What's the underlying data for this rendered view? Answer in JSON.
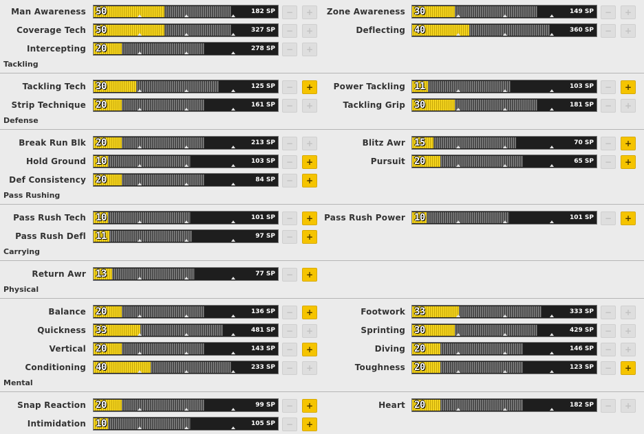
{
  "sections": [
    {
      "title": "",
      "rows": [
        [
          {
            "label": "Man Awareness",
            "value": "50",
            "level": 50,
            "sp": "182 SP",
            "plus_enabled": false
          },
          {
            "label": "Zone Awareness",
            "value": "30",
            "level": 30,
            "sp": "149 SP",
            "plus_enabled": false
          }
        ],
        [
          {
            "label": "Coverage Tech",
            "value": "50",
            "level": 50,
            "sp": "327 SP",
            "plus_enabled": false
          },
          {
            "label": "Deflecting",
            "value": "40",
            "level": 40,
            "sp": "360 SP",
            "plus_enabled": false
          }
        ],
        [
          {
            "label": "Intercepting",
            "value": "20",
            "level": 20,
            "sp": "278 SP",
            "plus_enabled": false
          }
        ]
      ]
    },
    {
      "title": "Tackling",
      "rows": [
        [
          {
            "label": "Tackling Tech",
            "value": "30",
            "level": 30,
            "sp": "125 SP",
            "plus_enabled": true
          },
          {
            "label": "Power Tackling",
            "value": "11",
            "level": 11,
            "sp": "103 SP",
            "plus_enabled": true
          }
        ],
        [
          {
            "label": "Strip Technique",
            "value": "20",
            "level": 20,
            "sp": "161 SP",
            "plus_enabled": false
          },
          {
            "label": "Tackling Grip",
            "value": "30",
            "level": 30,
            "sp": "181 SP",
            "plus_enabled": false
          }
        ]
      ]
    },
    {
      "title": "Defense",
      "rows": [
        [
          {
            "label": "Break Run Blk",
            "value": "20",
            "level": 20,
            "sp": "213 SP",
            "plus_enabled": false
          },
          {
            "label": "Blitz Awr",
            "value": "15",
            "level": 15,
            "sp": "70 SP",
            "plus_enabled": true
          }
        ],
        [
          {
            "label": "Hold Ground",
            "value": "10",
            "level": 10,
            "sp": "103 SP",
            "plus_enabled": true
          },
          {
            "label": "Pursuit",
            "value": "20",
            "level": 20,
            "sp": "65 SP",
            "plus_enabled": true
          }
        ],
        [
          {
            "label": "Def Consistency",
            "value": "20",
            "level": 20,
            "sp": "84 SP",
            "plus_enabled": true
          }
        ]
      ]
    },
    {
      "title": "Pass Rushing",
      "rows": [
        [
          {
            "label": "Pass Rush Tech",
            "value": "10",
            "level": 10,
            "sp": "101 SP",
            "plus_enabled": true
          },
          {
            "label": "Pass Rush Power",
            "value": "10",
            "level": 10,
            "sp": "101 SP",
            "plus_enabled": true
          }
        ],
        [
          {
            "label": "Pass Rush Defl",
            "value": "11",
            "level": 11,
            "sp": "97 SP",
            "plus_enabled": true
          }
        ]
      ]
    },
    {
      "title": "Carrying",
      "rows": [
        [
          {
            "label": "Return Awr",
            "value": "13",
            "level": 13,
            "sp": "77 SP",
            "plus_enabled": true
          }
        ]
      ]
    },
    {
      "title": "Physical",
      "rows": [
        [
          {
            "label": "Balance",
            "value": "20",
            "level": 20,
            "sp": "136 SP",
            "plus_enabled": true
          },
          {
            "label": "Footwork",
            "value": "33",
            "level": 33,
            "sp": "333 SP",
            "plus_enabled": false
          }
        ],
        [
          {
            "label": "Quickness",
            "value": "33",
            "level": 33,
            "sp": "481 SP",
            "plus_enabled": false
          },
          {
            "label": "Sprinting",
            "value": "30",
            "level": 30,
            "sp": "429 SP",
            "plus_enabled": false
          }
        ],
        [
          {
            "label": "Vertical",
            "value": "20",
            "level": 20,
            "sp": "143 SP",
            "plus_enabled": true
          },
          {
            "label": "Diving",
            "value": "20",
            "level": 20,
            "sp": "146 SP",
            "plus_enabled": false
          }
        ],
        [
          {
            "label": "Conditioning",
            "value": "40",
            "level": 40,
            "sp": "233 SP",
            "plus_enabled": false
          },
          {
            "label": "Toughness",
            "value": "20",
            "level": 20,
            "sp": "123 SP",
            "plus_enabled": true
          }
        ]
      ]
    },
    {
      "title": "Mental",
      "rows": [
        [
          {
            "label": "Snap Reaction",
            "value": "20",
            "level": 20,
            "sp": "99 SP",
            "plus_enabled": true
          },
          {
            "label": "Heart",
            "value": "20",
            "level": 20,
            "sp": "182 SP",
            "plus_enabled": false
          }
        ],
        [
          {
            "label": "Intimidation",
            "value": "10",
            "level": 10,
            "sp": "105 SP",
            "plus_enabled": true
          }
        ]
      ]
    }
  ],
  "buttons": {
    "minus": "−",
    "plus": "+"
  },
  "icons": {
    "bar_tick": "tick-triangle-icon"
  },
  "colors": {
    "fill": "#f2d21e",
    "plus_active": "#f5c400",
    "bar_bg": "#1e1e1e"
  }
}
